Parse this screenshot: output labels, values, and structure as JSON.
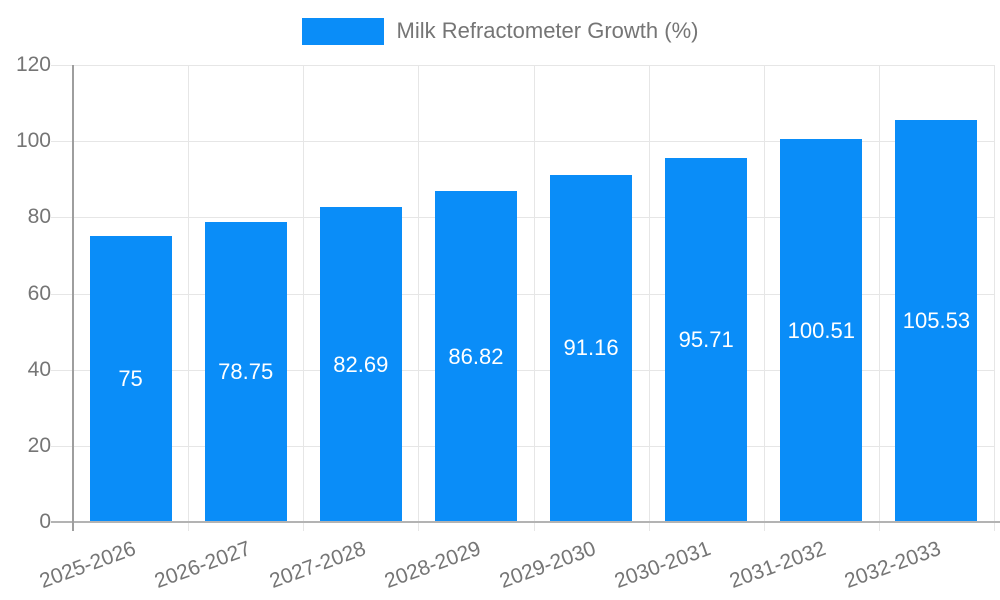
{
  "chart_data": {
    "type": "bar",
    "title": "Milk Refractometer Growth (%)",
    "legend": {
      "position": "top",
      "label": "Milk Refractometer Growth (%)"
    },
    "categories": [
      "2025-2026",
      "2026-2027",
      "2027-2028",
      "2028-2029",
      "2029-2030",
      "2030-2031",
      "2031-2032",
      "2032-2033"
    ],
    "values": [
      75,
      78.75,
      82.69,
      86.82,
      91.16,
      95.71,
      100.51,
      105.53
    ],
    "value_labels": [
      "75",
      "78.75",
      "82.69",
      "86.82",
      "91.16",
      "95.71",
      "100.51",
      "105.53"
    ],
    "xlabel": "",
    "ylabel": "",
    "ylim": [
      0,
      120
    ],
    "yticks": [
      0,
      20,
      40,
      60,
      80,
      100,
      120
    ],
    "grid": true,
    "x_label_rotation_deg": -20,
    "colors": {
      "bar": "#0a8df8",
      "value_label": "#ffffff",
      "axis_text": "#757575",
      "gridline": "#e6e6e6",
      "y_axis_line": "#9e9e9e",
      "baseline": "#b3b3b3",
      "tick": "#cccccc",
      "background": "#ffffff"
    }
  }
}
